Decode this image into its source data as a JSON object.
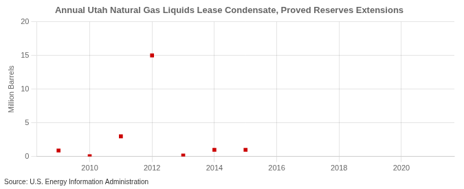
{
  "chart_data": {
    "type": "scatter",
    "title": "Annual Utah Natural Gas Liquids Lease Condensate, Proved Reserves Extensions",
    "ylabel": "Million Barrels",
    "annotation": "Source: U.S. Energy Information Administration",
    "x": [
      2009,
      2010,
      2011,
      2012,
      2013,
      2014,
      2015
    ],
    "values": [
      0.9,
      0.05,
      3.0,
      15.0,
      0.15,
      1.0,
      1.0
    ],
    "color": "#cc0000",
    "marker": "square",
    "xlim": [
      2008.3,
      2021.7
    ],
    "xticks": [
      2010,
      2012,
      2014,
      2016,
      2018,
      2020
    ],
    "ylim": [
      0,
      20
    ],
    "yticks": [
      0,
      5,
      10,
      15,
      20
    ],
    "grid": true
  }
}
